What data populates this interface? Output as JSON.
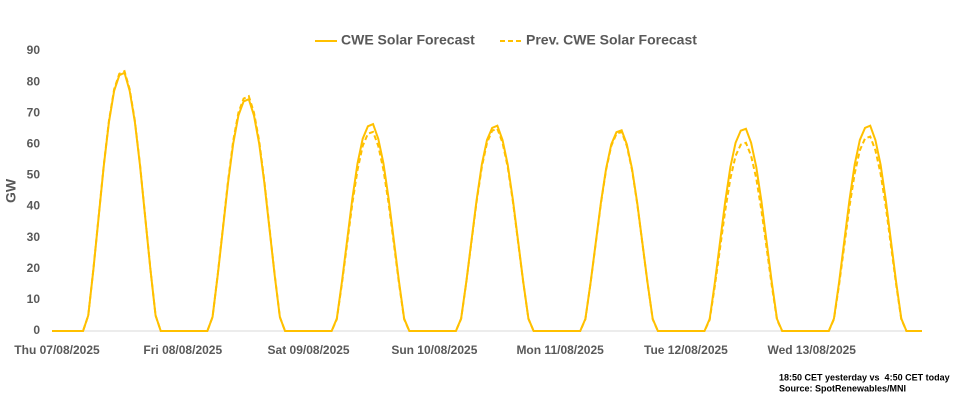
{
  "chart_data": {
    "type": "line",
    "y_label": "GW",
    "x": [
      0,
      6,
      7,
      8,
      9,
      10,
      11,
      12,
      13,
      14,
      15,
      16,
      17,
      18,
      19,
      20,
      21,
      30,
      31,
      32,
      33,
      34,
      35,
      36,
      37,
      38,
      39,
      40,
      41,
      42,
      43,
      44,
      45,
      54,
      55,
      56,
      57,
      58,
      59,
      60,
      61,
      62,
      63,
      64,
      65,
      66,
      67,
      68,
      69,
      78,
      79,
      80,
      81,
      82,
      83,
      84,
      85,
      86,
      87,
      88,
      89,
      90,
      91,
      92,
      93,
      102,
      103,
      104,
      105,
      106,
      107,
      108,
      109,
      110,
      111,
      112,
      113,
      114,
      115,
      116,
      117,
      126,
      127,
      128,
      129,
      130,
      131,
      132,
      133,
      134,
      135,
      136,
      137,
      138,
      139,
      140,
      141,
      150,
      151,
      152,
      153,
      154,
      155,
      156,
      157,
      158,
      159,
      160,
      161,
      162,
      163,
      164,
      165,
      168
    ],
    "series": [
      {
        "name": "CWE Solar Forecast",
        "color": "#FFC000",
        "dash": false,
        "values": [
          0,
          0,
          5.0,
          19.9,
          36.5,
          53.1,
          67.2,
          77.2,
          82.2,
          83.0,
          77.2,
          67.2,
          53.1,
          36.5,
          19.9,
          5.0,
          0,
          0,
          4.5,
          17.9,
          32.8,
          47.7,
          60.3,
          69.3,
          73.8,
          74.5,
          69.3,
          60.3,
          47.7,
          32.8,
          17.9,
          4.5,
          0,
          0,
          4.0,
          16.0,
          29.3,
          42.6,
          53.9,
          61.8,
          65.8,
          66.5,
          61.8,
          53.9,
          42.6,
          29.3,
          16.0,
          4.0,
          0,
          0,
          4.0,
          15.8,
          29.0,
          42.2,
          53.5,
          61.4,
          65.3,
          66.0,
          61.4,
          53.5,
          42.2,
          29.0,
          15.8,
          4.0,
          0,
          0,
          3.9,
          15.5,
          28.4,
          41.3,
          52.2,
          60.0,
          63.9,
          64.5,
          60.0,
          52.2,
          41.3,
          28.4,
          15.5,
          3.9,
          0,
          0,
          3.9,
          15.6,
          28.6,
          41.6,
          52.7,
          60.5,
          64.4,
          65.0,
          60.5,
          52.7,
          41.6,
          28.6,
          15.6,
          3.9,
          0,
          0,
          4.0,
          15.8,
          29.0,
          42.2,
          53.5,
          61.4,
          65.3,
          66.0,
          61.4,
          53.5,
          42.2,
          29.0,
          15.8,
          4.0,
          0,
          0
        ]
      },
      {
        "name": "Prev. CWE Solar Forecast",
        "color": "#FFC000",
        "dash": true,
        "values": [
          0,
          0,
          5.0,
          20.0,
          36.7,
          53.4,
          67.6,
          77.7,
          82.7,
          83.5,
          77.7,
          67.6,
          53.4,
          36.7,
          20.0,
          5.0,
          0,
          0,
          4.5,
          18.1,
          33.2,
          48.3,
          61.2,
          70.2,
          74.7,
          75.5,
          70.2,
          61.2,
          48.3,
          33.2,
          18.1,
          4.5,
          0,
          0,
          3.8,
          15.4,
          28.2,
          41.0,
          51.8,
          59.5,
          63.4,
          64.0,
          59.5,
          51.8,
          41.0,
          28.2,
          15.4,
          3.8,
          0,
          0,
          3.9,
          15.6,
          28.6,
          41.6,
          52.7,
          60.5,
          64.4,
          65.0,
          60.5,
          52.7,
          41.6,
          28.6,
          15.6,
          3.9,
          0,
          0,
          3.8,
          15.4,
          28.2,
          41.0,
          51.8,
          59.5,
          63.4,
          64.0,
          59.5,
          51.8,
          41.0,
          28.2,
          15.4,
          3.8,
          0,
          0,
          3.6,
          14.5,
          26.6,
          38.7,
          49.0,
          56.3,
          59.9,
          60.5,
          56.3,
          49.0,
          38.7,
          26.6,
          14.5,
          3.6,
          0,
          0,
          3.8,
          15.0,
          27.5,
          40.0,
          50.6,
          58.1,
          61.9,
          62.5,
          58.1,
          50.6,
          40.0,
          27.5,
          15.0,
          3.8,
          0,
          0
        ]
      }
    ],
    "xlim": [
      0,
      168
    ],
    "xticks": [
      {
        "value": 0,
        "label": "Thu 07/08/2025"
      },
      {
        "value": 24,
        "label": "Fri 08/08/2025"
      },
      {
        "value": 48,
        "label": "Sat 09/08/2025"
      },
      {
        "value": 72,
        "label": "Sun 10/08/2025"
      },
      {
        "value": 96,
        "label": "Mon 11/08/2025"
      },
      {
        "value": 120,
        "label": "Tue 12/08/2025"
      },
      {
        "value": 144,
        "label": "Wed 13/08/2025"
      }
    ],
    "ylim": [
      0,
      90
    ],
    "yticks": [
      0,
      10,
      20,
      30,
      40,
      50,
      60,
      70,
      80,
      90
    ],
    "legend": "top",
    "notes": [
      "18:50 CET yesterday vs  4:50 CET today",
      "Source: SpotRenewables/MNI"
    ]
  }
}
